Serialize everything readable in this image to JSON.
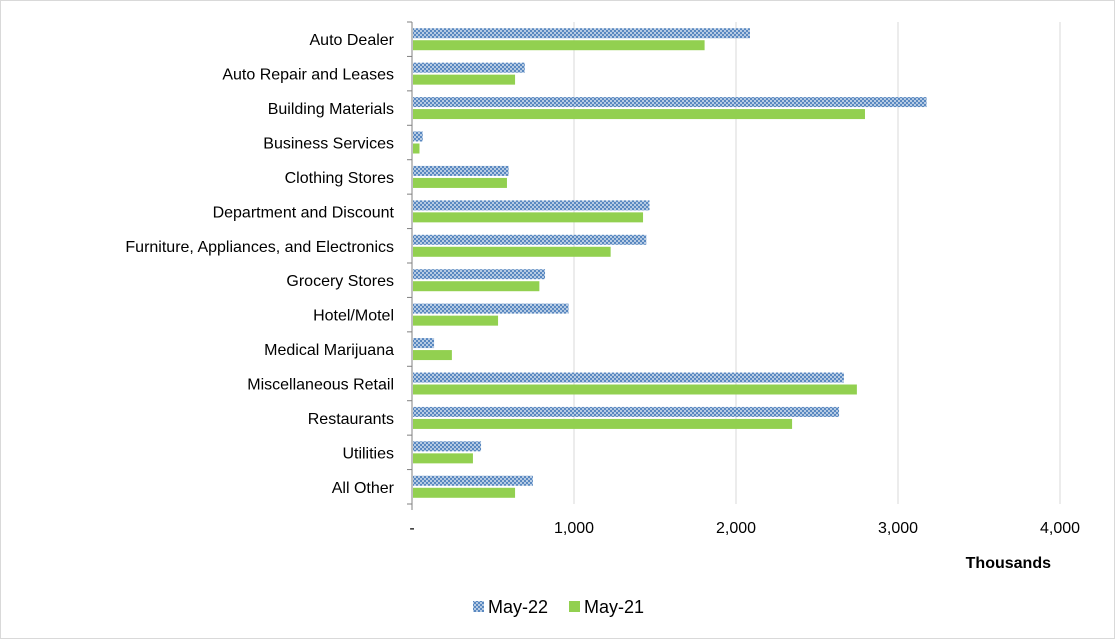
{
  "chart_data": {
    "type": "bar",
    "orientation": "horizontal",
    "categories": [
      "Auto Dealer",
      "Auto Repair and Leases",
      "Building Materials",
      "Business Services",
      "Clothing Stores",
      "Department and Discount",
      "Furniture, Appliances, and Electronics",
      "Grocery Stores",
      "Hotel/Motel",
      "Medical Marijuana",
      "Miscellaneous Retail",
      "Restaurants",
      "Utilities",
      "All Other"
    ],
    "series": [
      {
        "name": "May-22",
        "color": "#4f81bd",
        "pattern": "crosshatch",
        "values": [
          2080,
          690,
          3170,
          60,
          590,
          1460,
          1440,
          815,
          960,
          130,
          2660,
          2630,
          420,
          740
        ]
      },
      {
        "name": "May-21",
        "color": "#92d050",
        "pattern": "solid",
        "values": [
          1800,
          630,
          2790,
          40,
          580,
          1420,
          1220,
          780,
          525,
          240,
          2740,
          2340,
          370,
          630
        ]
      }
    ],
    "xlim": [
      0,
      4000
    ],
    "x_ticks": [
      0,
      1000,
      2000,
      3000,
      4000
    ],
    "x_tick_labels": [
      "-",
      "1,000",
      "2,000",
      "3,000",
      "4,000"
    ],
    "xlabel": "Thousands",
    "ylabel": "",
    "title": "",
    "grid": "vertical",
    "legend_position": "bottom"
  }
}
